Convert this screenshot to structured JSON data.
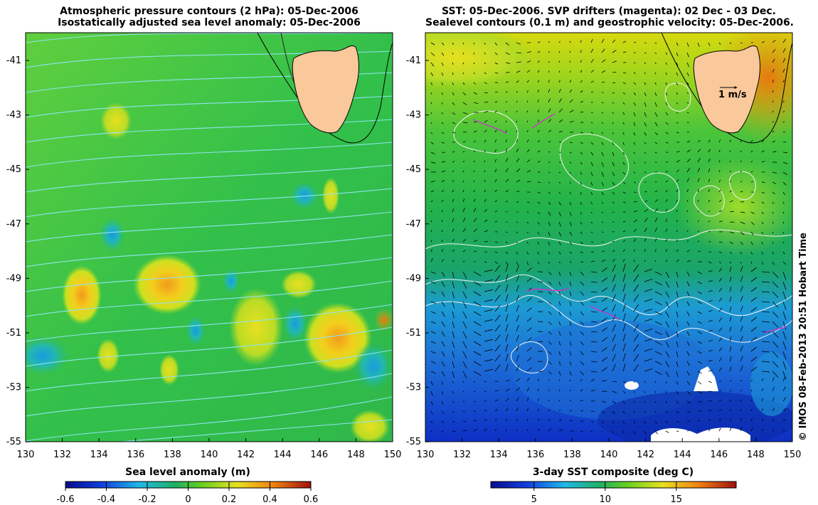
{
  "left_panel": {
    "title_line1": "Atmospheric pressure contours (2 hPa): 05-Dec-2006",
    "title_line2": "Isostatically adjusted sea level anomaly: 05-Dec-2006",
    "x_ticks": [
      "130",
      "132",
      "134",
      "136",
      "138",
      "140",
      "142",
      "144",
      "146",
      "148",
      "150"
    ],
    "y_ticks": [
      "-41",
      "-43",
      "-45",
      "-47",
      "-49",
      "-51",
      "-53",
      "-55"
    ],
    "colorbar": {
      "title": "Sea level anomaly (m)",
      "ticks": [
        "-0.6",
        "-0.4",
        "-0.2",
        "0",
        "0.2",
        "0.4",
        "0.6"
      ]
    }
  },
  "right_panel": {
    "title_line1": "SST: 05-Dec-2006. SVP drifters (magenta): 02 Dec - 03 Dec.",
    "title_line2": "Sealevel contours (0.1 m) and geostrophic velocity: 05-Dec-2006.",
    "velocity_scale_label": "1 m/s",
    "x_ticks": [
      "130",
      "132",
      "134",
      "136",
      "138",
      "140",
      "142",
      "144",
      "146",
      "148",
      "150"
    ],
    "y_ticks": [
      "-41",
      "-43",
      "-45",
      "-47",
      "-49",
      "-51",
      "-53",
      "-55"
    ],
    "colorbar": {
      "title": "3-day SST composite (deg C)",
      "ticks": [
        "5",
        "10",
        "15"
      ]
    }
  },
  "credit": "© IMOS 08-Feb-2013 20:51 Hobart Time",
  "colors": {
    "land": "#f9c89b",
    "pressure_contour": "#8fe4ef",
    "sst_contour": "#f2f2f2",
    "drifter": "#cc33cc"
  }
}
